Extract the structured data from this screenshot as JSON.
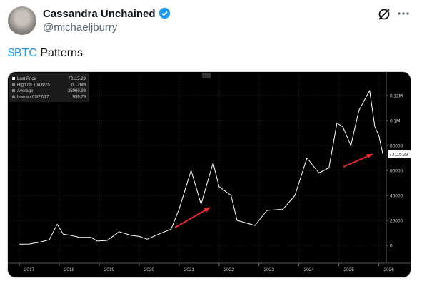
{
  "header": {
    "display_name": "Cassandra Unchained",
    "handle": "@michaeljburry"
  },
  "tweet": {
    "cashtag": "$BTC",
    "text": "Patterns"
  },
  "chart_data": {
    "type": "line",
    "stats": [
      {
        "label": "Last Price",
        "value": 73115.29
      },
      {
        "label": "High on 10/06/25",
        "value": "0.126M"
      },
      {
        "label": "Average",
        "value": 35960.93
      },
      {
        "label": "Low on 03/27/17",
        "value": 939.79
      }
    ],
    "series": [
      {
        "color": "#ffffff",
        "x": [
          2017.0,
          2017.25,
          2017.5,
          2017.75,
          2017.95,
          2018.1,
          2018.3,
          2018.5,
          2018.8,
          2018.95,
          2019.2,
          2019.5,
          2019.8,
          2020.0,
          2020.2,
          2020.5,
          2020.8,
          2021.0,
          2021.3,
          2021.55,
          2021.85,
          2022.0,
          2022.3,
          2022.45,
          2022.9,
          2023.2,
          2023.6,
          2023.9,
          2024.2,
          2024.5,
          2024.75,
          2024.95,
          2025.1,
          2025.3,
          2025.5,
          2025.77,
          2025.9,
          2026.0,
          2026.1
        ],
        "values": [
          1000,
          1100,
          2500,
          4500,
          17000,
          9000,
          8000,
          6500,
          6400,
          3500,
          4000,
          11000,
          8000,
          7200,
          5000,
          9200,
          13000,
          29000,
          60000,
          33000,
          66000,
          47000,
          40000,
          20000,
          16000,
          28000,
          29000,
          40000,
          70000,
          58000,
          62000,
          98000,
          95000,
          80000,
          108000,
          124000,
          95000,
          88000,
          73115.29
        ]
      }
    ],
    "xlim": [
      2016.75,
      2026.15
    ],
    "xticks": [
      2017,
      2018,
      2019,
      2020,
      2021,
      2022,
      2023,
      2024,
      2025,
      2026
    ],
    "ylim": [
      -12000,
      132000
    ],
    "yticks": [
      0,
      20000,
      40000,
      60000,
      80000,
      {
        "value": 100000,
        "label": "0.1M"
      },
      {
        "value": 120000,
        "label": "0.12M"
      }
    ],
    "grid": true
  }
}
